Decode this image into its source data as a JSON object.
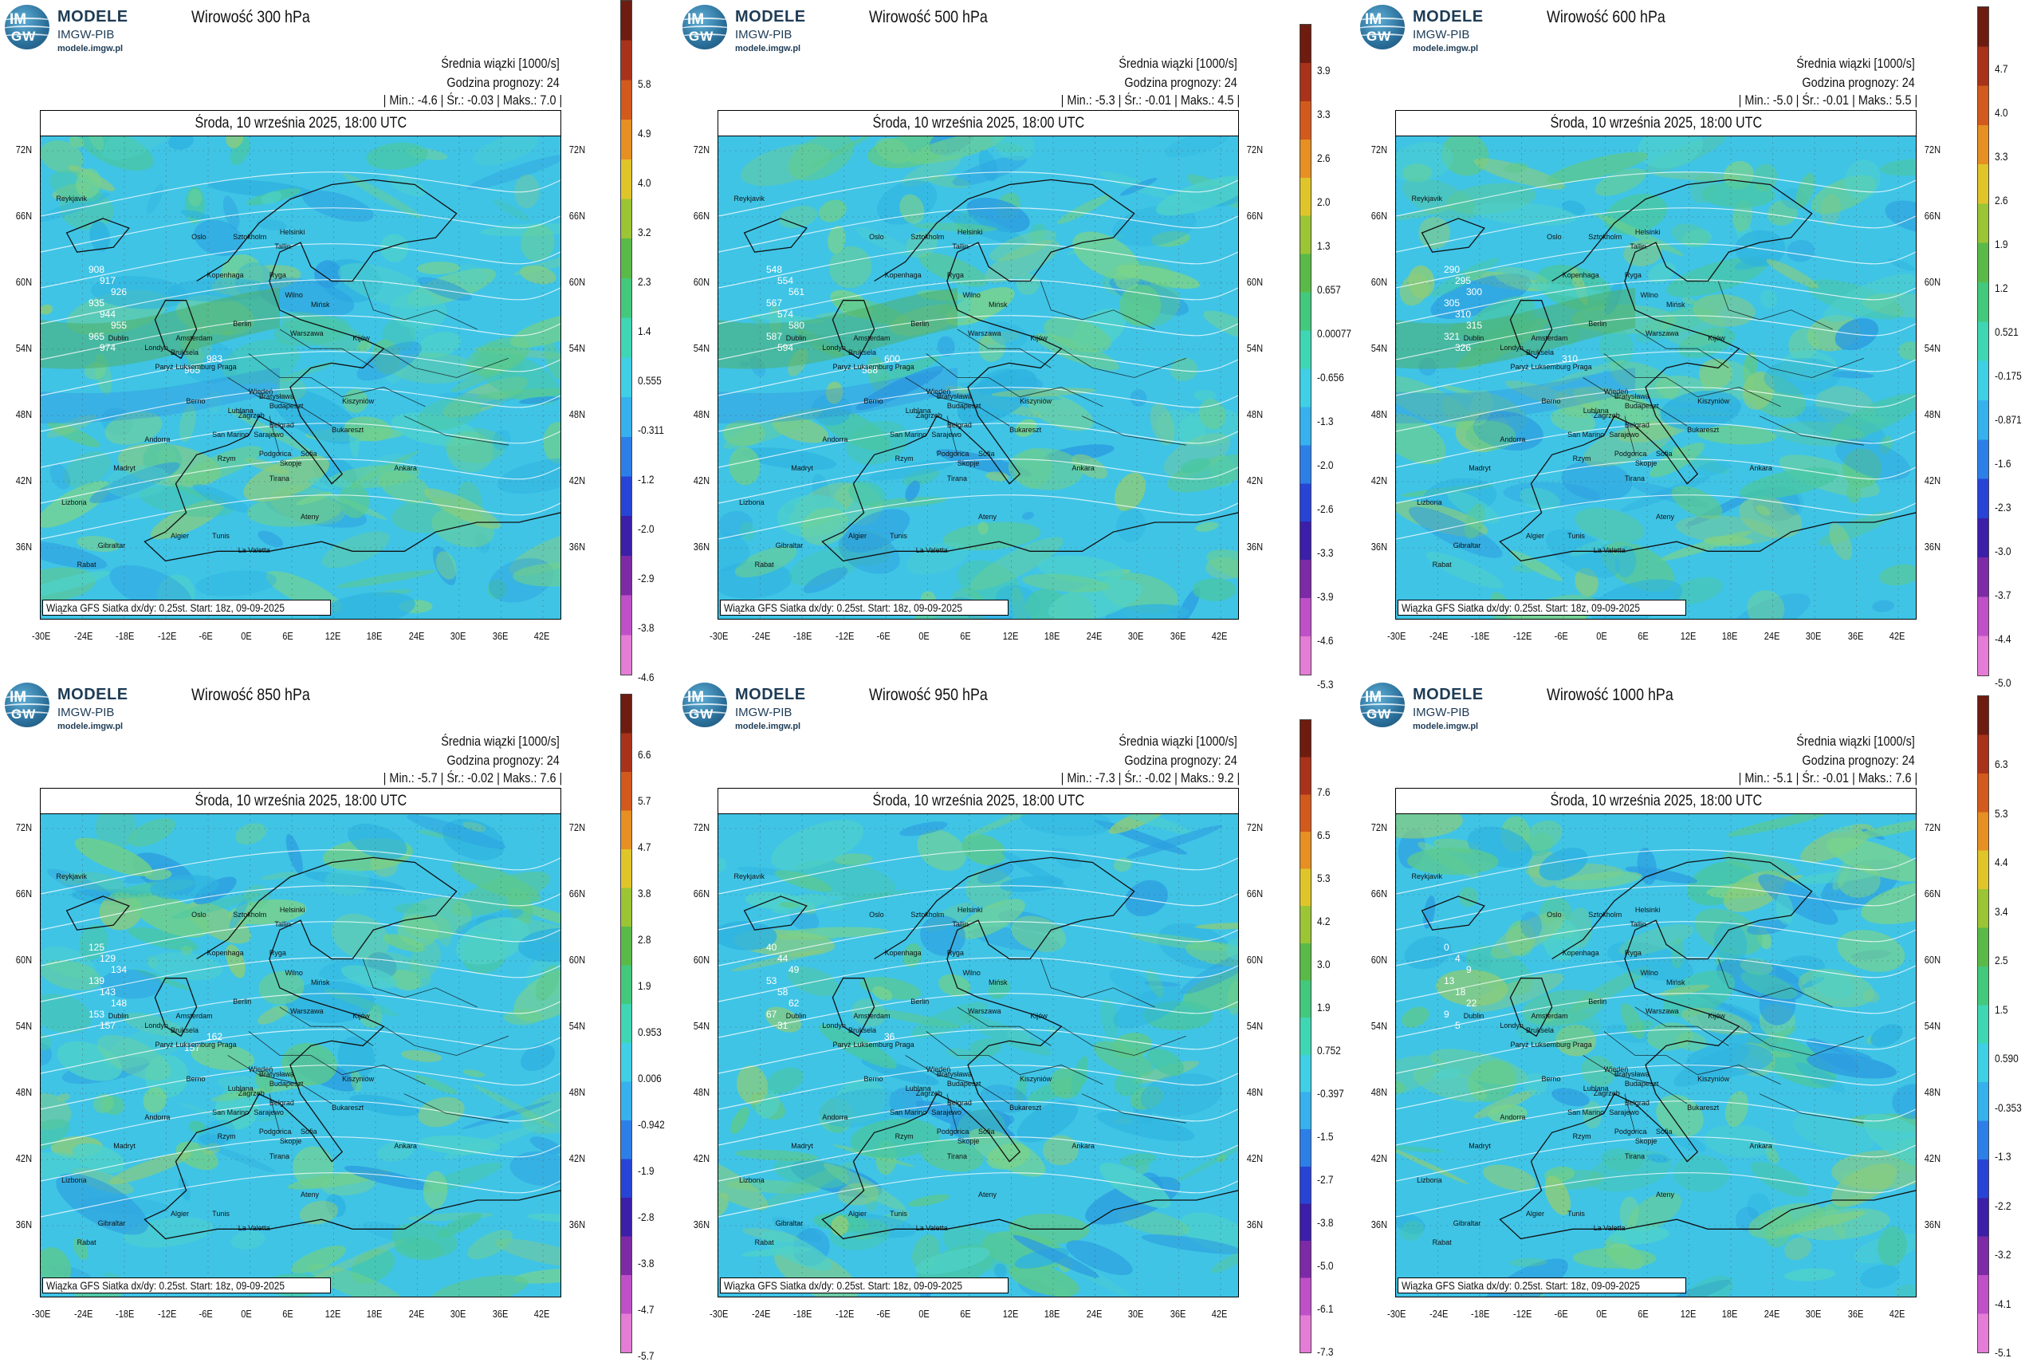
{
  "brand": {
    "line1": "MODELE",
    "line2": "IMGW-PIB",
    "line3": "modele.imgw.pl",
    "badge_top": "IM",
    "badge_bottom": "GW"
  },
  "common": {
    "subtitle": "Średnia wiązki [1000/s]",
    "forecast_hour": "Godzina prognozy: 24",
    "date": "Środa, 10 września 2025, 18:00 UTC",
    "footer": "Wiązka GFS Siatka dx/dy: 0.25st. Start: 18z, 09-09-2025",
    "lat_labels": [
      "72N",
      "66N",
      "60N",
      "54N",
      "48N",
      "42N",
      "36N"
    ],
    "lon_labels": [
      "-30E",
      "-24E",
      "-18E",
      "-12E",
      "-6E",
      "0E",
      "6E",
      "12E",
      "18E",
      "24E",
      "30E",
      "36E",
      "42E"
    ],
    "cities": [
      "Oslo",
      "Sztokholm",
      "Helsinki",
      "Tallin",
      "Ryga",
      "Wilno",
      "Kopenhaga",
      "Mińsk",
      "Warszawa",
      "Berlin",
      "Amsterdam",
      "Londyn",
      "Bruksela",
      "Paryż",
      "Luksemburg",
      "Praga",
      "Kijów",
      "Wiedeń",
      "Bratysława",
      "Budapeszt",
      "Kiszyniów",
      "Berno",
      "Lublana",
      "Zagrzeb",
      "Belgrad",
      "Bukareszt",
      "Sarajewo",
      "Podgorica",
      "Sofia",
      "Andorra",
      "San Marino",
      "Rzym",
      "Skopje",
      "Tirana",
      "Ankara",
      "Madryt",
      "Ateny",
      "Lizbona",
      "Algier",
      "Tunis",
      "La Valetta",
      "Gibraltar",
      "Rabat",
      "Dublin",
      "Reykjavik"
    ]
  },
  "panels": [
    {
      "title": "Wirowość 300 hPa",
      "stats": "| Min.:   -4.6 | Śr.:   -0.03 | Maks.:    7.0 |",
      "scale": [
        "5.8",
        "4.9",
        "4.0",
        "3.2",
        "2.3",
        "1.4",
        "0.555",
        "-0.311",
        "-1.2",
        "-2.0",
        "-2.9",
        "-3.8",
        "-4.6"
      ],
      "contours": [
        "908",
        "917",
        "926",
        "935",
        "944",
        "955",
        "965",
        "974",
        "983",
        "965"
      ]
    },
    {
      "title": "Wirowość 500 hPa",
      "stats": "| Min.:   -5.3 | Śr.:   -0.01 | Maks.:    4.5 |",
      "scale": [
        "3.9",
        "3.3",
        "2.6",
        "2.0",
        "1.3",
        "0.657",
        "0.00077",
        "-0.656",
        "-1.3",
        "-2.0",
        "-2.6",
        "-3.3",
        "-3.9",
        "-4.6",
        "-5.3"
      ],
      "contours": [
        "548",
        "554",
        "561",
        "567",
        "574",
        "580",
        "587",
        "594",
        "600",
        "588"
      ]
    },
    {
      "title": "Wirowość 600 hPa",
      "stats": "| Min.:   -5.0 | Śr.:   -0.01 | Maks.:    5.5 |",
      "scale": [
        "4.7",
        "4.0",
        "3.3",
        "2.6",
        "1.9",
        "1.2",
        "0.521",
        "-0.175",
        "-0.871",
        "-1.6",
        "-2.3",
        "-3.0",
        "-3.7",
        "-4.4",
        "-5.0"
      ],
      "contours": [
        "290",
        "295",
        "300",
        "305",
        "310",
        "315",
        "321",
        "326",
        "310"
      ]
    },
    {
      "title": "Wirowość 850 hPa",
      "stats": "| Min.:   -5.7 | Śr.:   -0.02 | Maks.:    7.6 |",
      "scale": [
        "6.6",
        "5.7",
        "4.7",
        "3.8",
        "2.8",
        "1.9",
        "0.953",
        "0.006",
        "-0.942",
        "-1.9",
        "-2.8",
        "-3.8",
        "-4.7",
        "-5.7"
      ],
      "contours": [
        "125",
        "129",
        "134",
        "139",
        "143",
        "148",
        "153",
        "157",
        "162",
        "157"
      ]
    },
    {
      "title": "Wirowość 950 hPa",
      "stats": "| Min.:   -7.3 | Śr.:   -0.02 | Maks.:    9.2 |",
      "scale": [
        "7.6",
        "6.5",
        "5.3",
        "4.2",
        "3.0",
        "1.9",
        "0.752",
        "-0.397",
        "-1.5",
        "-2.7",
        "-3.8",
        "-5.0",
        "-6.1",
        "-7.3"
      ],
      "contours": [
        "40",
        "44",
        "49",
        "53",
        "58",
        "62",
        "67",
        "31",
        "36"
      ]
    },
    {
      "title": "Wirowość 1000 hPa",
      "stats": "| Min.:   -5.1 | Śr.:   -0.01 | Maks.:    7.6 |",
      "scale": [
        "6.3",
        "5.3",
        "4.4",
        "3.4",
        "2.5",
        "1.5",
        "0.590",
        "-0.353",
        "-1.3",
        "-2.2",
        "-3.2",
        "-4.1",
        "-5.1"
      ],
      "contours": [
        "0",
        "4",
        "9",
        "13",
        "18",
        "22",
        "9",
        "5"
      ]
    }
  ],
  "colors": {
    "field_base": "#3fc4e6",
    "field_green": "#5cc98e",
    "contour": "#ffffff",
    "coast": "#111111"
  }
}
